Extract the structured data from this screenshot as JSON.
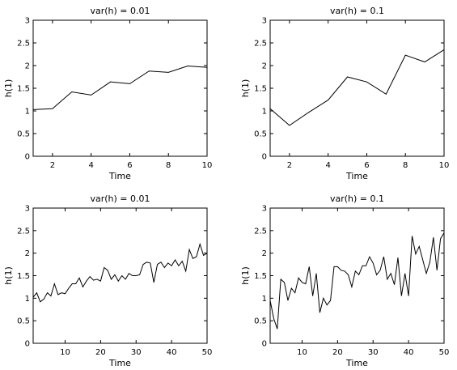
{
  "chart_data": [
    {
      "type": "line",
      "title": "var(h) = 0.01",
      "xlabel": "Time",
      "ylabel": "h(1)",
      "xlim": [
        1,
        10
      ],
      "ylim": [
        0,
        3
      ],
      "xticks": [
        2,
        4,
        6,
        8,
        10
      ],
      "yticks": [
        0,
        0.5,
        1,
        1.5,
        2,
        2.5,
        3
      ],
      "grid": false,
      "series": [
        {
          "x": [
            1,
            2,
            3,
            4,
            5,
            6,
            7,
            8,
            9,
            10
          ],
          "values": [
            1.03,
            1.05,
            1.42,
            1.35,
            1.64,
            1.6,
            1.88,
            1.85,
            1.99,
            1.96
          ]
        }
      ]
    },
    {
      "type": "line",
      "title": "var(h) = 0.1",
      "xlabel": "Time",
      "ylabel": "h(1)",
      "xlim": [
        1,
        10
      ],
      "ylim": [
        0,
        3
      ],
      "xticks": [
        2,
        4,
        6,
        8,
        10
      ],
      "yticks": [
        0,
        0.5,
        1,
        1.5,
        2,
        2.5,
        3
      ],
      "grid": false,
      "series": [
        {
          "x": [
            1,
            2,
            3,
            4,
            5,
            6,
            7,
            8,
            9,
            10
          ],
          "values": [
            1.05,
            0.68,
            0.97,
            1.24,
            1.75,
            1.64,
            1.37,
            2.23,
            2.08,
            2.35
          ]
        }
      ]
    },
    {
      "type": "line",
      "title": "var(h) = 0.01",
      "xlabel": "Time",
      "ylabel": "h(1)",
      "xlim": [
        1,
        50
      ],
      "ylim": [
        0,
        3
      ],
      "xticks": [
        10,
        20,
        30,
        40,
        50
      ],
      "yticks": [
        0,
        0.5,
        1,
        1.5,
        2,
        2.5,
        3
      ],
      "grid": false,
      "series": [
        {
          "x": [
            1,
            2,
            3,
            4,
            5,
            6,
            7,
            8,
            9,
            10,
            11,
            12,
            13,
            14,
            15,
            16,
            17,
            18,
            19,
            20,
            21,
            22,
            23,
            24,
            25,
            26,
            27,
            28,
            29,
            30,
            31,
            32,
            33,
            34,
            35,
            36,
            37,
            38,
            39,
            40,
            41,
            42,
            43,
            44,
            45,
            46,
            47,
            48,
            49,
            50
          ],
          "values": [
            1.02,
            1.12,
            0.92,
            0.98,
            1.12,
            1.05,
            1.32,
            1.08,
            1.12,
            1.1,
            1.22,
            1.32,
            1.32,
            1.45,
            1.25,
            1.38,
            1.48,
            1.4,
            1.42,
            1.38,
            1.68,
            1.62,
            1.42,
            1.52,
            1.38,
            1.5,
            1.42,
            1.55,
            1.5,
            1.5,
            1.52,
            1.75,
            1.8,
            1.78,
            1.35,
            1.75,
            1.8,
            1.68,
            1.78,
            1.72,
            1.85,
            1.72,
            1.82,
            1.6,
            2.08,
            1.88,
            1.92,
            2.2,
            1.95,
            2.0
          ]
        }
      ]
    },
    {
      "type": "line",
      "title": "var(h) = 0.1",
      "xlabel": "Time",
      "ylabel": "h(1)",
      "xlim": [
        1,
        50
      ],
      "ylim": [
        0,
        3
      ],
      "xticks": [
        10,
        20,
        30,
        40,
        50
      ],
      "yticks": [
        0,
        0.5,
        1,
        1.5,
        2,
        2.5,
        3
      ],
      "grid": false,
      "series": [
        {
          "x": [
            1,
            2,
            3,
            4,
            5,
            6,
            7,
            8,
            9,
            10,
            11,
            12,
            13,
            14,
            15,
            16,
            17,
            18,
            19,
            20,
            21,
            22,
            23,
            24,
            25,
            26,
            27,
            28,
            29,
            30,
            31,
            32,
            33,
            34,
            35,
            36,
            37,
            38,
            39,
            40,
            41,
            42,
            43,
            44,
            45,
            46,
            47,
            48,
            49,
            50
          ],
          "values": [
            0.95,
            0.55,
            0.32,
            1.42,
            1.35,
            0.95,
            1.22,
            1.12,
            1.45,
            1.35,
            1.32,
            1.7,
            1.05,
            1.55,
            0.68,
            1.0,
            0.85,
            0.95,
            1.7,
            1.7,
            1.62,
            1.6,
            1.52,
            1.25,
            1.6,
            1.52,
            1.72,
            1.72,
            1.92,
            1.78,
            1.52,
            1.62,
            1.92,
            1.42,
            1.55,
            1.3,
            1.9,
            1.05,
            1.55,
            1.05,
            2.38,
            1.98,
            2.15,
            1.85,
            1.55,
            1.8,
            2.35,
            1.62,
            2.32,
            2.45
          ]
        }
      ]
    }
  ]
}
